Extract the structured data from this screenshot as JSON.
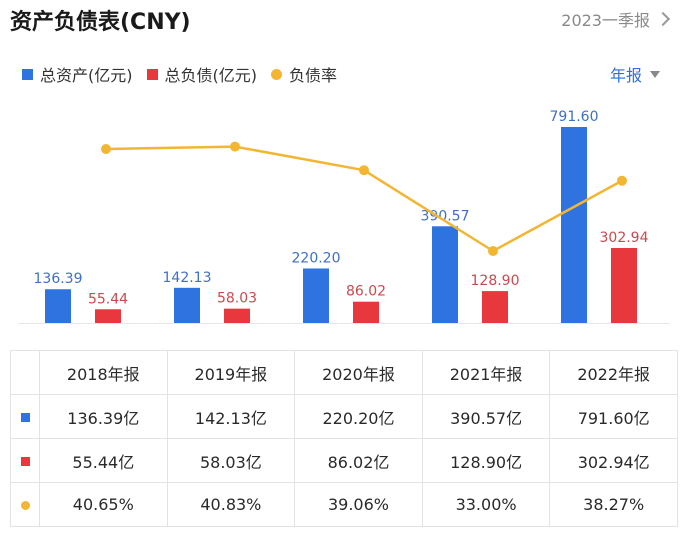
{
  "header": {
    "title": "资产负债表(CNY)",
    "period_link": "2023一季报"
  },
  "period_select": {
    "label": "年报"
  },
  "colors": {
    "assets": "#2f73e0",
    "liabilities": "#e8383d",
    "ratio": "#f2b632"
  },
  "chart_data": {
    "type": "bar",
    "categories": [
      "2018年报",
      "2019年报",
      "2020年报",
      "2021年报",
      "2022年报"
    ],
    "series": [
      {
        "name": "总资产(亿元)",
        "kind": "bar",
        "values": [
          136.39,
          142.13,
          220.2,
          390.57,
          791.6
        ],
        "labels": [
          "136.39",
          "142.13",
          "220.20",
          "390.57",
          "791.60"
        ]
      },
      {
        "name": "总负债(亿元)",
        "kind": "bar",
        "values": [
          55.44,
          58.03,
          86.02,
          128.9,
          302.94
        ],
        "labels": [
          "55.44",
          "58.03",
          "86.02",
          "128.90",
          "302.94"
        ]
      },
      {
        "name": "负债率",
        "kind": "line",
        "values": [
          40.65,
          40.83,
          39.06,
          33.0,
          38.27
        ]
      }
    ],
    "legend_position": "top-left",
    "grid": false
  },
  "table": {
    "headers": [
      "2018年报",
      "2019年报",
      "2020年报",
      "2021年报",
      "2022年报"
    ],
    "rows": [
      [
        "136.39亿",
        "142.13亿",
        "220.20亿",
        "390.57亿",
        "791.60亿"
      ],
      [
        "55.44亿",
        "58.03亿",
        "86.02亿",
        "128.90亿",
        "302.94亿"
      ],
      [
        "40.65%",
        "40.83%",
        "39.06%",
        "33.00%",
        "38.27%"
      ]
    ]
  }
}
